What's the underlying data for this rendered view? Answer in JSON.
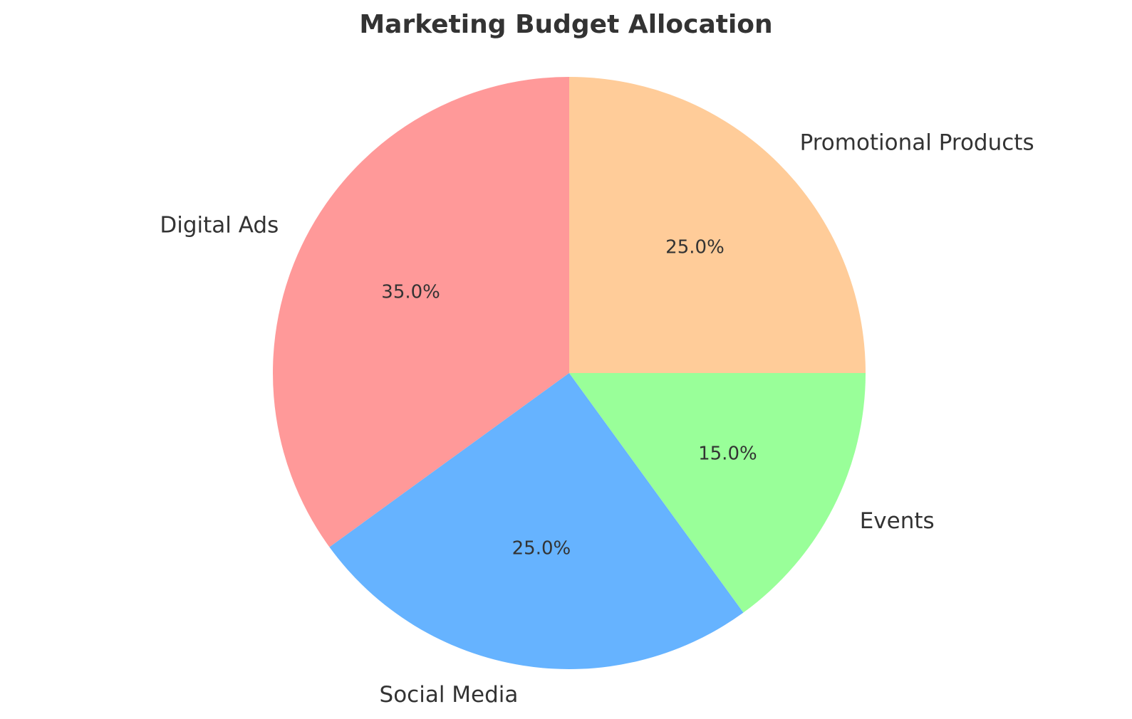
{
  "chart_data": {
    "type": "pie",
    "title": "Marketing Budget Allocation",
    "start_angle_deg": 90,
    "direction": "counterclockwise",
    "slices": [
      {
        "label": "Digital Ads",
        "value": 35.0,
        "percent_label": "35.0%",
        "color": "#ff9999"
      },
      {
        "label": "Social Media",
        "value": 25.0,
        "percent_label": "25.0%",
        "color": "#66b3ff"
      },
      {
        "label": "Events",
        "value": 15.0,
        "percent_label": "15.0%",
        "color": "#99ff99"
      },
      {
        "label": "Promotional Products",
        "value": 25.0,
        "percent_label": "25.0%",
        "color": "#ffcc99"
      }
    ]
  }
}
